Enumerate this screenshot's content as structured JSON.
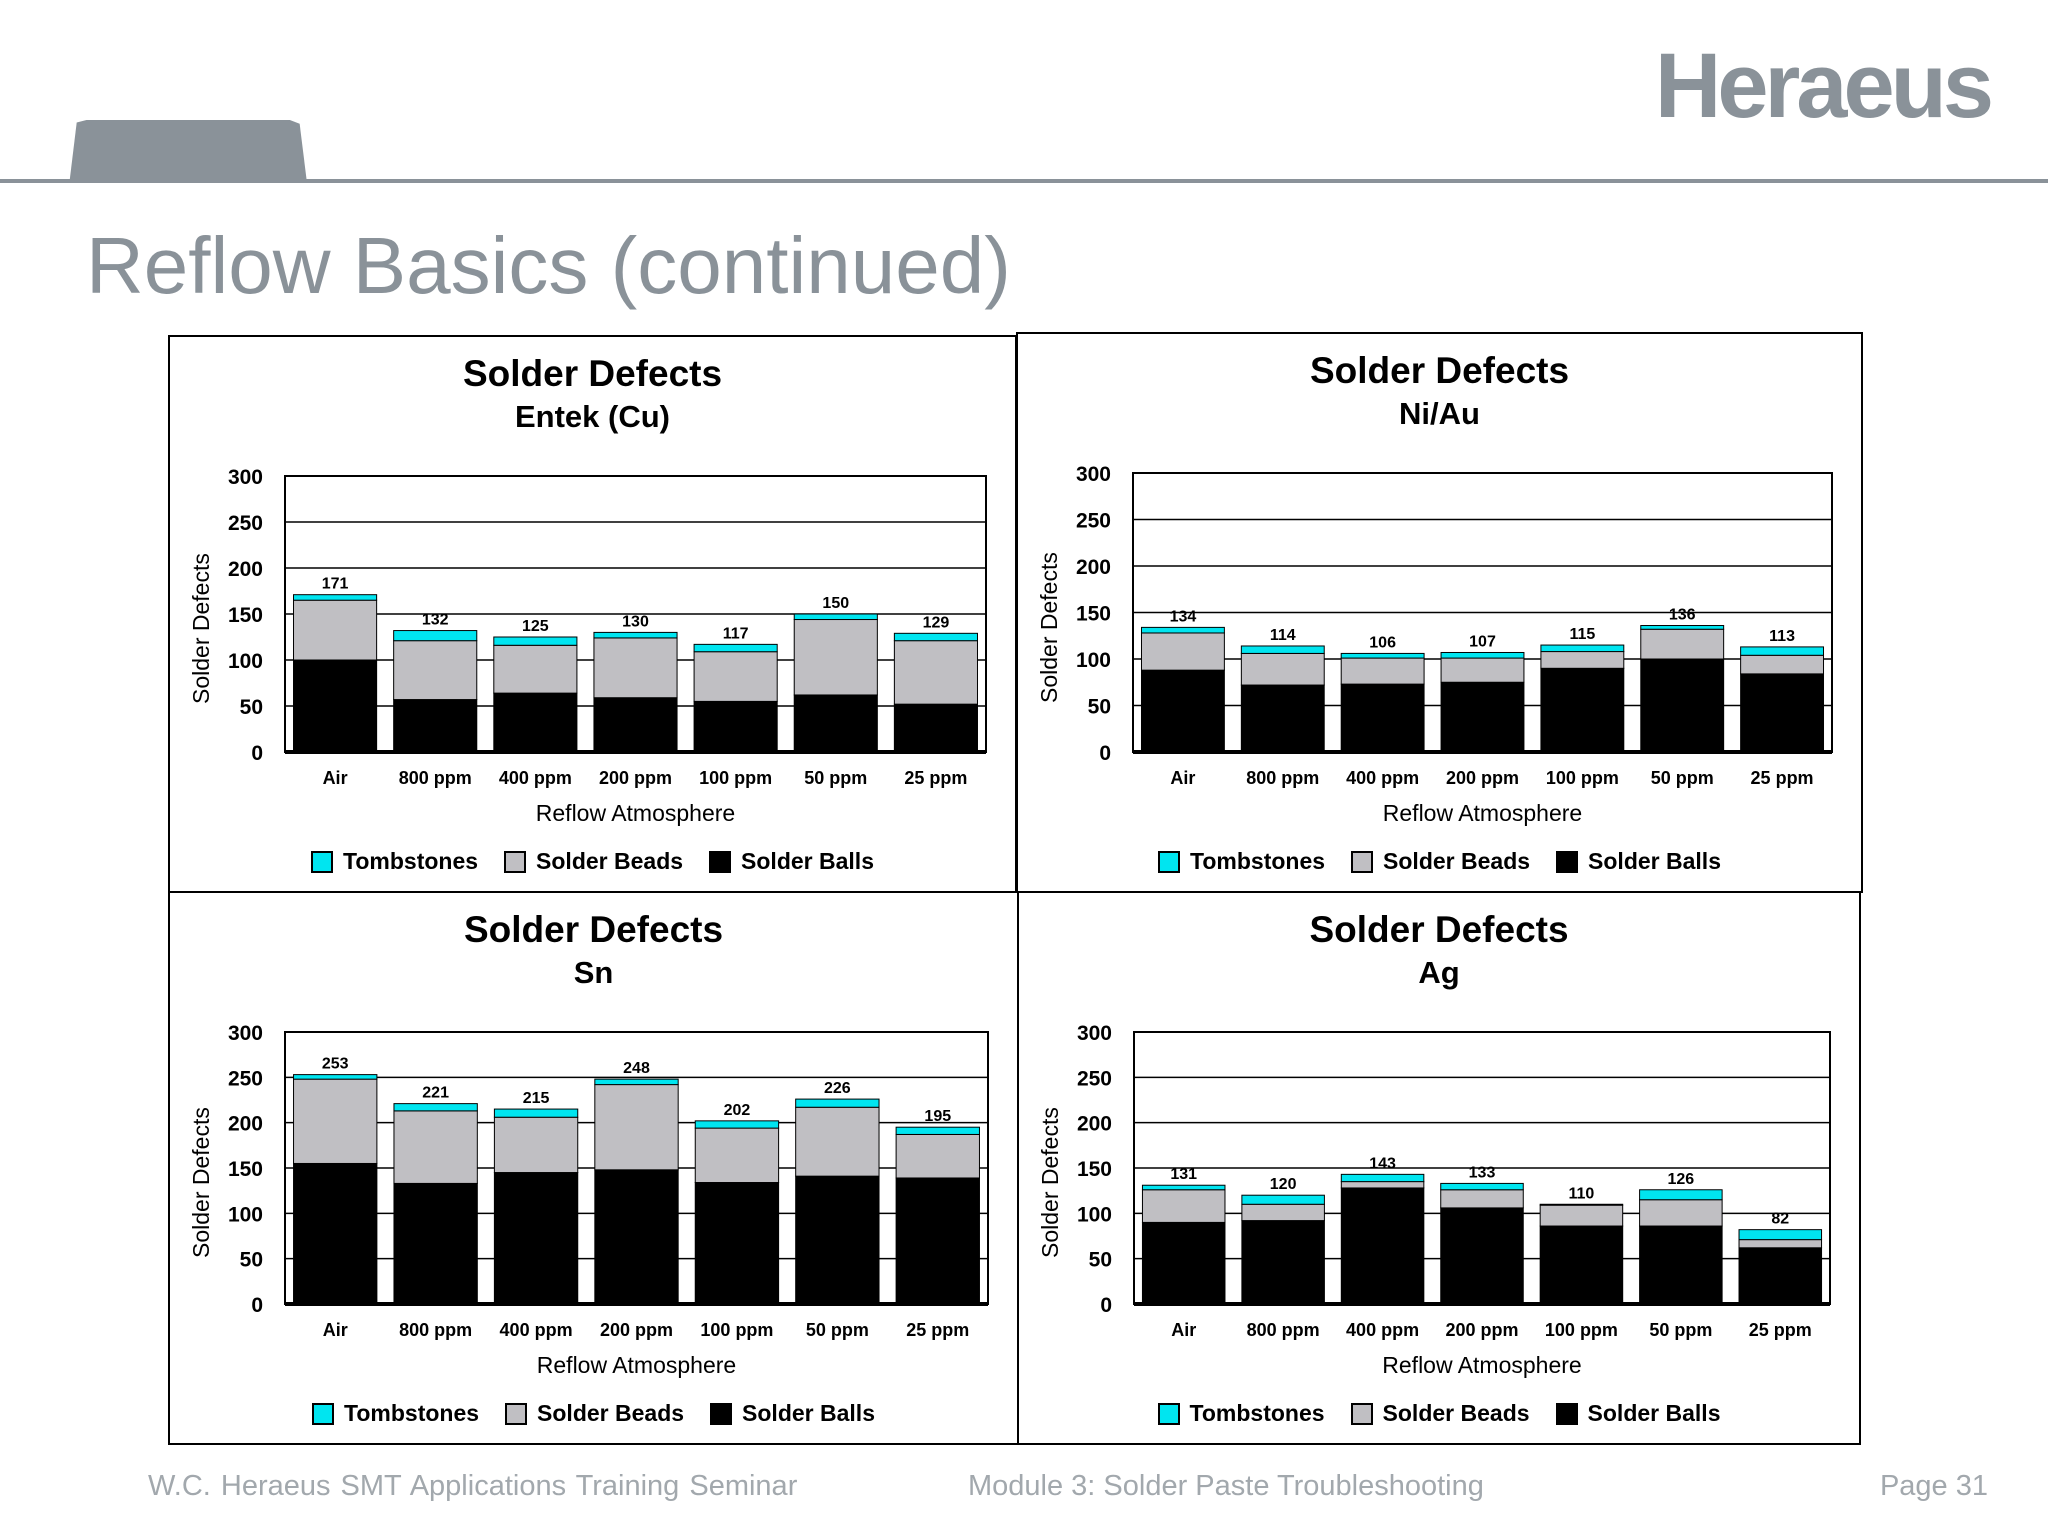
{
  "slide": {
    "brand": "Heraeus",
    "title": "Reflow Basics (continued)",
    "footer_left": "W.C. Heraeus    SMT Applications Training Seminar",
    "footer_center": "Module 3: Solder Paste Troubleshooting",
    "footer_right": "Page 31"
  },
  "colors": {
    "tombstones": "#00e5f0",
    "solder_beads": "#c0bfc3",
    "solder_balls": "#000000",
    "header_gray": "#8a9299"
  },
  "chart_data": [
    {
      "type": "bar",
      "stacked": true,
      "title": "Solder Defects",
      "subtitle": "Entek (Cu)",
      "xlabel": "Reflow Atmosphere",
      "ylabel": "Solder Defects",
      "ylim": [
        0,
        300
      ],
      "yticks": [
        "0",
        "50",
        "100",
        "150",
        "200",
        "250",
        "300"
      ],
      "grid": true,
      "legend_position": "bottom",
      "categories": [
        "Air",
        "800 ppm",
        "400 ppm",
        "200 ppm",
        "100 ppm",
        "50 ppm",
        "25 ppm"
      ],
      "totals": [
        171,
        132,
        125,
        130,
        117,
        150,
        129
      ],
      "series": [
        {
          "name": "Solder Balls",
          "values": [
            100,
            57,
            64,
            59,
            55,
            62,
            52
          ]
        },
        {
          "name": "Solder Beads",
          "values": [
            65,
            64,
            52,
            65,
            54,
            82,
            69
          ]
        },
        {
          "name": "Tombstones",
          "values": [
            6,
            11,
            9,
            6,
            8,
            6,
            8
          ]
        }
      ]
    },
    {
      "type": "bar",
      "stacked": true,
      "title": "Solder Defects",
      "subtitle": "Ni/Au",
      "xlabel": "Reflow Atmosphere",
      "ylabel": "Solder Defects",
      "ylim": [
        0,
        300
      ],
      "yticks": [
        "0",
        "50",
        "100",
        "150",
        "200",
        "250",
        "300"
      ],
      "grid": true,
      "legend_position": "bottom",
      "categories": [
        "Air",
        "800 ppm",
        "400 ppm",
        "200 ppm",
        "100 ppm",
        "50 ppm",
        "25 ppm"
      ],
      "totals": [
        134,
        114,
        106,
        107,
        115,
        136,
        113
      ],
      "series": [
        {
          "name": "Solder Balls",
          "values": [
            88,
            72,
            73,
            75,
            90,
            100,
            84
          ]
        },
        {
          "name": "Solder Beads",
          "values": [
            40,
            34,
            28,
            26,
            18,
            32,
            20
          ]
        },
        {
          "name": "Tombstones",
          "values": [
            6,
            8,
            5,
            6,
            7,
            4,
            9
          ]
        }
      ]
    },
    {
      "type": "bar",
      "stacked": true,
      "title": "Solder Defects",
      "subtitle": "Sn",
      "xlabel": "Reflow Atmosphere",
      "ylabel": "Solder Defects",
      "ylim": [
        0,
        300
      ],
      "yticks": [
        "0",
        "50",
        "100",
        "150",
        "200",
        "250",
        "300"
      ],
      "grid": true,
      "legend_position": "bottom",
      "categories": [
        "Air",
        "800 ppm",
        "400 ppm",
        "200 ppm",
        "100 ppm",
        "50 ppm",
        "25 ppm"
      ],
      "totals": [
        253,
        221,
        215,
        248,
        202,
        226,
        195
      ],
      "series": [
        {
          "name": "Solder Balls",
          "values": [
            155,
            133,
            145,
            148,
            134,
            141,
            139
          ]
        },
        {
          "name": "Solder Beads",
          "values": [
            93,
            80,
            61,
            94,
            60,
            76,
            48
          ]
        },
        {
          "name": "Tombstones",
          "values": [
            5,
            8,
            9,
            6,
            8,
            9,
            8
          ]
        }
      ]
    },
    {
      "type": "bar",
      "stacked": true,
      "title": "Solder Defects",
      "subtitle": "Ag",
      "xlabel": "Reflow Atmosphere",
      "ylabel": "Solder Defects",
      "ylim": [
        0,
        300
      ],
      "yticks": [
        "0",
        "50",
        "100",
        "150",
        "200",
        "250",
        "300"
      ],
      "grid": true,
      "legend_position": "bottom",
      "categories": [
        "Air",
        "800 ppm",
        "400 ppm",
        "200 ppm",
        "100 ppm",
        "50 ppm",
        "25 ppm"
      ],
      "totals": [
        131,
        120,
        143,
        133,
        110,
        126,
        82
      ],
      "series": [
        {
          "name": "Solder Balls",
          "values": [
            90,
            92,
            128,
            106,
            86,
            86,
            62
          ]
        },
        {
          "name": "Solder Beads",
          "values": [
            36,
            18,
            7,
            20,
            23,
            29,
            9
          ]
        },
        {
          "name": "Tombstones",
          "values": [
            5,
            10,
            8,
            7,
            1,
            11,
            11
          ]
        }
      ]
    }
  ]
}
